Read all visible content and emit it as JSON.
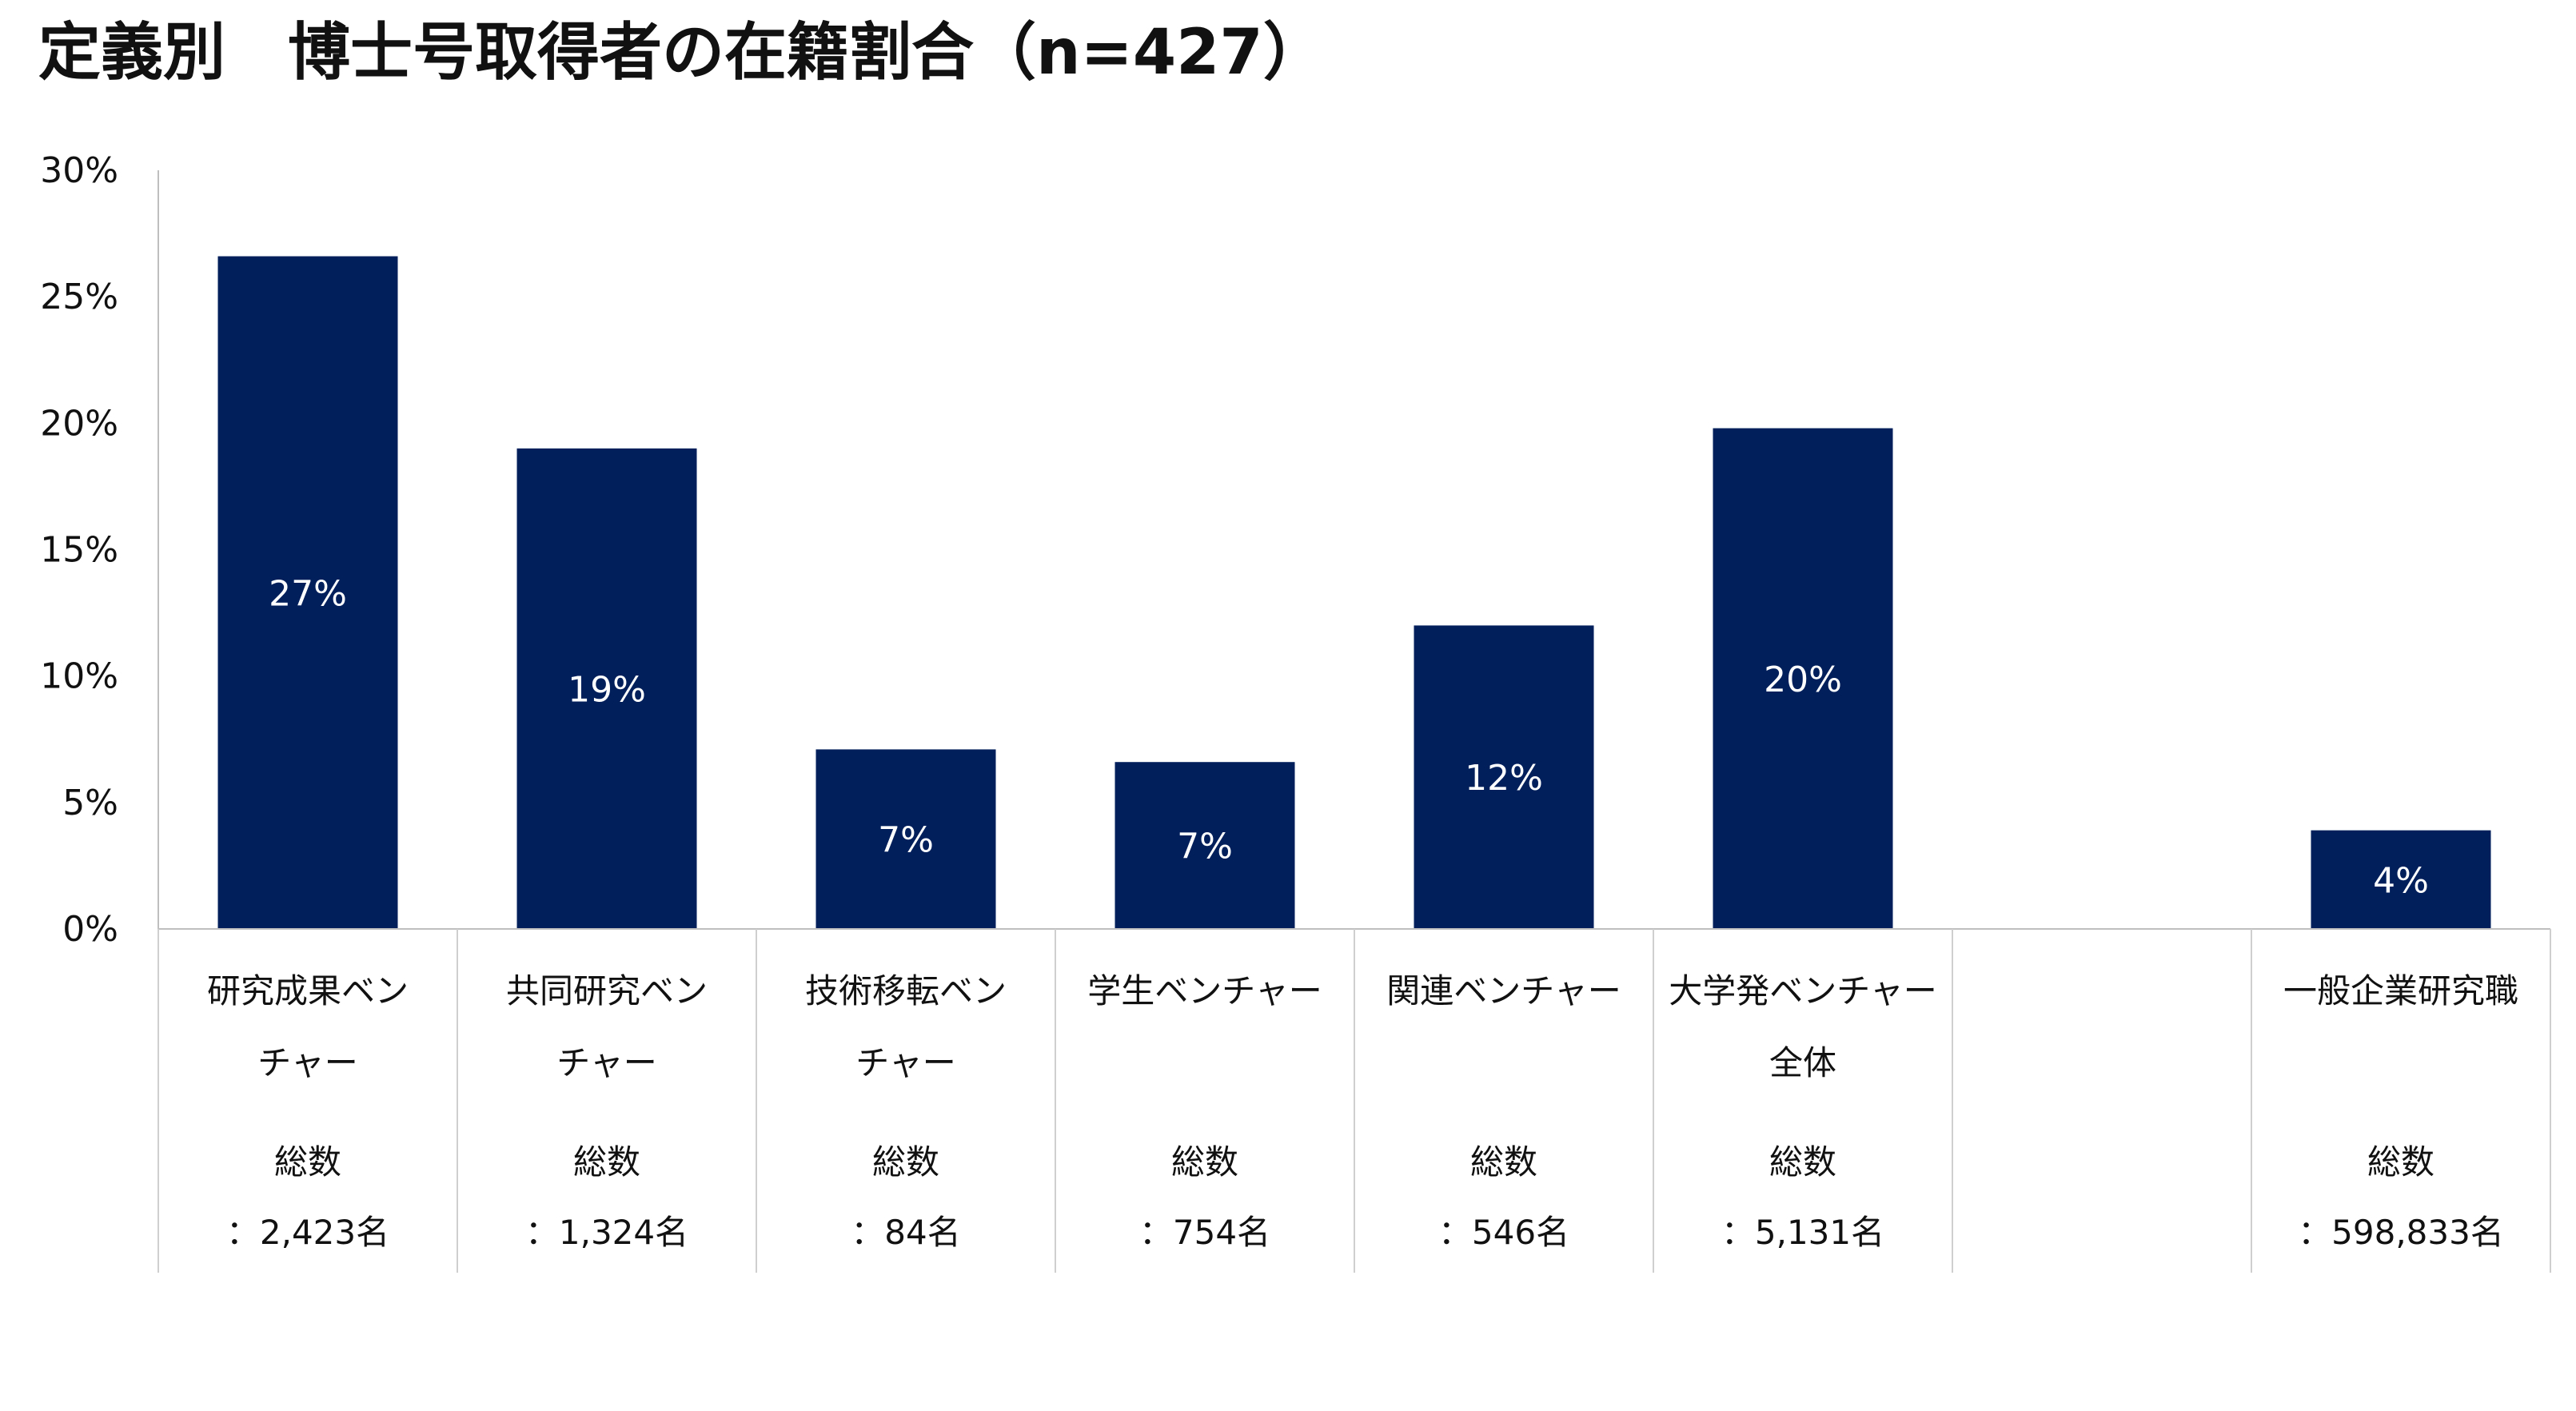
{
  "chart_data": {
    "type": "bar",
    "title": "定義別　博士号取得者の在籍割合（n=427）",
    "xlabel": "",
    "ylabel": "",
    "ylim": [
      0,
      30
    ],
    "yticks": [
      "30%",
      "25%",
      "20%",
      "15%",
      "10%",
      "5%",
      "0%"
    ],
    "ytick_values": [
      30,
      25,
      20,
      15,
      10,
      5,
      0
    ],
    "grid": false,
    "legend": "none",
    "bar_color": "#001f5b",
    "categories": [
      {
        "lines": [
          "研究成果ベン",
          "チャー"
        ],
        "total_label": "総数",
        "total_value": "：2,423名",
        "value": 26.6,
        "data_label": "27%"
      },
      {
        "lines": [
          "共同研究ベン",
          "チャー"
        ],
        "total_label": "総数",
        "total_value": "：1,324名",
        "value": 19.0,
        "data_label": "19%"
      },
      {
        "lines": [
          "技術移転ベン",
          "チャー"
        ],
        "total_label": "総数",
        "total_value": "：84名",
        "value": 7.1,
        "data_label": "7%"
      },
      {
        "lines": [
          "学生ベンチャー"
        ],
        "total_label": "総数",
        "total_value": "：754名",
        "value": 6.6,
        "data_label": "7%"
      },
      {
        "lines": [
          "関連ベンチャー"
        ],
        "total_label": "総数",
        "total_value": "：546名",
        "value": 12.0,
        "data_label": "12%"
      },
      {
        "lines": [
          "大学発ベンチャー",
          "全体"
        ],
        "total_label": "総数",
        "total_value": "：5,131名",
        "value": 19.8,
        "data_label": "20%"
      },
      {
        "lines": [],
        "total_label": "",
        "total_value": "",
        "value": null,
        "data_label": ""
      },
      {
        "lines": [
          "一般企業研究職"
        ],
        "total_label": "総数",
        "total_value": "：598,833名",
        "value": 3.9,
        "data_label": "4%"
      }
    ]
  }
}
